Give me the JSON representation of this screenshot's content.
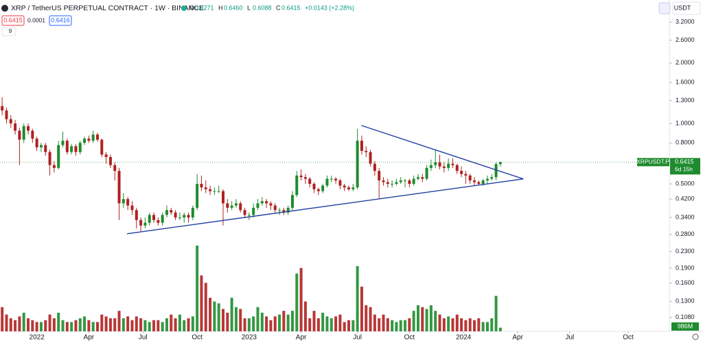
{
  "ui": {
    "symbol": "XRP / TetherUS PERPETUAL CONTRACT · 1W · BINANCE",
    "ohlc": [
      {
        "key": "O",
        "value": "0.6271"
      },
      {
        "key": "H",
        "value": "0.6460"
      },
      {
        "key": "L",
        "value": "0.6088"
      },
      {
        "key": "C",
        "value": "0.6415"
      }
    ],
    "change": "+0.0143 (+2.28%)",
    "sell": "0.6415",
    "spread": "0.0001",
    "buy": "0.6416",
    "indicators": "9",
    "currency": "USDT",
    "price_label": {
      "symbol": "XRPUSDT.P",
      "countdown": "6d 15h"
    }
  },
  "chart_data": {
    "type": "candlestick",
    "log_scale": true,
    "grid": false,
    "up_color": "#1e8c2e",
    "down_color": "#b02020",
    "trendline_color": "#1f3fa0",
    "xlim": [
      -0.5,
      154
    ],
    "xticks": [
      {
        "value": 8,
        "label": "2022"
      },
      {
        "value": 20,
        "label": "Apr"
      },
      {
        "value": 32.5,
        "label": "Jul"
      },
      {
        "value": 45,
        "label": "Oct"
      },
      {
        "value": 57,
        "label": "2023"
      },
      {
        "value": 69,
        "label": "Apr"
      },
      {
        "value": 82,
        "label": "Jul"
      },
      {
        "value": 94,
        "label": "Oct"
      },
      {
        "value": 106.5,
        "label": "2024"
      },
      {
        "value": 119,
        "label": "Apr"
      },
      {
        "value": 131,
        "label": "Jul"
      },
      {
        "value": 144.5,
        "label": "Oct"
      }
    ],
    "ylim": [
      0.0921,
      4.12
    ],
    "yticks": [
      {
        "value": 3.2,
        "label": "3.2000"
      },
      {
        "value": 2.6,
        "label": "2.6000"
      },
      {
        "value": 2,
        "label": "2.0000"
      },
      {
        "value": 1.6,
        "label": "1.6000"
      },
      {
        "value": 1.3,
        "label": "1.3000"
      },
      {
        "value": 1,
        "label": "1.0000"
      },
      {
        "value": 0.8,
        "label": "0.8000"
      },
      {
        "value": 0.5,
        "label": "0.5000"
      },
      {
        "value": 0.42,
        "label": "0.4200"
      },
      {
        "value": 0.34,
        "label": "0.3400"
      },
      {
        "value": 0.28,
        "label": "0.2800"
      },
      {
        "value": 0.23,
        "label": "0.2300"
      },
      {
        "value": 0.19,
        "label": "0.1900"
      },
      {
        "value": 0.16,
        "label": "0.1600"
      },
      {
        "value": 0.13,
        "label": "0.1300"
      },
      {
        "value": 0.108,
        "label": "0.1080"
      }
    ],
    "open": [
      1.22,
      1.16,
      1.05,
      1.0,
      0.92,
      0.83,
      0.97,
      0.92,
      0.84,
      0.76,
      0.78,
      0.72,
      0.62,
      0.6,
      0.78,
      0.82,
      0.72,
      0.77,
      0.72,
      0.8,
      0.84,
      0.82,
      0.88,
      0.83,
      0.7,
      0.68,
      0.62,
      0.58,
      0.4,
      0.42,
      0.39,
      0.37,
      0.33,
      0.31,
      0.32,
      0.35,
      0.33,
      0.32,
      0.35,
      0.37,
      0.36,
      0.34,
      0.34,
      0.35,
      0.34,
      0.38,
      0.5,
      0.48,
      0.47,
      0.46,
      0.46,
      0.46,
      0.4,
      0.38,
      0.39,
      0.4,
      0.37,
      0.35,
      0.35,
      0.38,
      0.4,
      0.41,
      0.4,
      0.39,
      0.37,
      0.37,
      0.36,
      0.38,
      0.44,
      0.55,
      0.54,
      0.53,
      0.5,
      0.47,
      0.46,
      0.49,
      0.53,
      0.53,
      0.52,
      0.49,
      0.48,
      0.47,
      0.48,
      0.82,
      0.73,
      0.72,
      0.63,
      0.58,
      0.52,
      0.51,
      0.5,
      0.5,
      0.51,
      0.52,
      0.52,
      0.5,
      0.53,
      0.54,
      0.53,
      0.6,
      0.62,
      0.64,
      0.61,
      0.6,
      0.63,
      0.62,
      0.58,
      0.56,
      0.55,
      0.52,
      0.51,
      0.5,
      0.52,
      0.53,
      0.54,
      0.6271
    ],
    "high": [
      1.35,
      1.2,
      1.1,
      1.04,
      0.95,
      1.0,
      1.0,
      0.94,
      0.86,
      0.8,
      0.8,
      0.74,
      0.65,
      0.82,
      0.91,
      0.84,
      0.79,
      0.79,
      0.82,
      0.86,
      0.87,
      0.92,
      0.9,
      0.84,
      0.72,
      0.7,
      0.64,
      0.6,
      0.45,
      0.43,
      0.41,
      0.38,
      0.34,
      0.34,
      0.36,
      0.36,
      0.34,
      0.36,
      0.39,
      0.38,
      0.37,
      0.36,
      0.36,
      0.36,
      0.39,
      0.56,
      0.55,
      0.52,
      0.49,
      0.48,
      0.49,
      0.47,
      0.42,
      0.41,
      0.42,
      0.41,
      0.38,
      0.36,
      0.4,
      0.42,
      0.43,
      0.42,
      0.41,
      0.4,
      0.38,
      0.38,
      0.39,
      0.46,
      0.58,
      0.59,
      0.56,
      0.54,
      0.51,
      0.48,
      0.5,
      0.55,
      0.55,
      0.54,
      0.53,
      0.5,
      0.49,
      0.5,
      0.94,
      0.87,
      0.77,
      0.74,
      0.65,
      0.6,
      0.54,
      0.53,
      0.52,
      0.53,
      0.54,
      0.53,
      0.53,
      0.55,
      0.56,
      0.56,
      0.62,
      0.66,
      0.74,
      0.7,
      0.64,
      0.67,
      0.67,
      0.63,
      0.61,
      0.58,
      0.56,
      0.54,
      0.52,
      0.53,
      0.55,
      0.56,
      0.64,
      0.646
    ],
    "low": [
      1.1,
      1.0,
      0.95,
      0.88,
      0.62,
      0.8,
      0.88,
      0.8,
      0.73,
      0.72,
      0.69,
      0.55,
      0.57,
      0.59,
      0.76,
      0.7,
      0.7,
      0.69,
      0.7,
      0.78,
      0.8,
      0.8,
      0.81,
      0.68,
      0.63,
      0.6,
      0.52,
      0.33,
      0.38,
      0.37,
      0.35,
      0.3,
      0.29,
      0.3,
      0.31,
      0.32,
      0.31,
      0.31,
      0.34,
      0.35,
      0.33,
      0.33,
      0.32,
      0.32,
      0.33,
      0.37,
      0.46,
      0.45,
      0.44,
      0.44,
      0.45,
      0.31,
      0.36,
      0.37,
      0.38,
      0.36,
      0.34,
      0.33,
      0.34,
      0.37,
      0.39,
      0.38,
      0.37,
      0.36,
      0.35,
      0.35,
      0.35,
      0.37,
      0.43,
      0.52,
      0.5,
      0.48,
      0.45,
      0.44,
      0.45,
      0.48,
      0.51,
      0.5,
      0.47,
      0.46,
      0.46,
      0.46,
      0.47,
      0.7,
      0.68,
      0.61,
      0.55,
      0.42,
      0.49,
      0.48,
      0.48,
      0.49,
      0.5,
      0.48,
      0.48,
      0.49,
      0.52,
      0.51,
      0.52,
      0.58,
      0.6,
      0.59,
      0.57,
      0.58,
      0.6,
      0.56,
      0.54,
      0.5,
      0.5,
      0.49,
      0.49,
      0.49,
      0.5,
      0.52,
      0.52,
      0.6088
    ],
    "close": [
      1.16,
      1.05,
      1.0,
      0.92,
      0.83,
      0.97,
      0.92,
      0.84,
      0.76,
      0.78,
      0.72,
      0.62,
      0.6,
      0.78,
      0.82,
      0.72,
      0.77,
      0.72,
      0.8,
      0.84,
      0.82,
      0.88,
      0.83,
      0.7,
      0.68,
      0.62,
      0.58,
      0.4,
      0.42,
      0.39,
      0.37,
      0.33,
      0.31,
      0.32,
      0.35,
      0.33,
      0.32,
      0.35,
      0.37,
      0.36,
      0.34,
      0.34,
      0.35,
      0.34,
      0.38,
      0.5,
      0.48,
      0.47,
      0.46,
      0.46,
      0.46,
      0.4,
      0.38,
      0.39,
      0.4,
      0.37,
      0.35,
      0.35,
      0.38,
      0.4,
      0.41,
      0.4,
      0.39,
      0.37,
      0.37,
      0.36,
      0.38,
      0.44,
      0.55,
      0.54,
      0.53,
      0.5,
      0.47,
      0.46,
      0.49,
      0.53,
      0.53,
      0.52,
      0.49,
      0.48,
      0.47,
      0.48,
      0.82,
      0.73,
      0.72,
      0.63,
      0.58,
      0.52,
      0.51,
      0.5,
      0.5,
      0.51,
      0.52,
      0.52,
      0.5,
      0.53,
      0.54,
      0.53,
      0.6,
      0.62,
      0.64,
      0.61,
      0.6,
      0.63,
      0.62,
      0.58,
      0.56,
      0.55,
      0.52,
      0.51,
      0.5,
      0.52,
      0.53,
      0.54,
      0.6272,
      0.6415
    ],
    "volume": [
      6500,
      4500,
      3500,
      3000,
      4000,
      5000,
      3500,
      3000,
      2500,
      2500,
      3000,
      4500,
      3500,
      5000,
      3000,
      2500,
      2500,
      3000,
      3500,
      4000,
      3000,
      2500,
      2500,
      4500,
      4000,
      3500,
      3500,
      5500,
      3500,
      4000,
      3000,
      4000,
      3500,
      3000,
      2500,
      3000,
      3000,
      2500,
      3500,
      4500,
      3500,
      4500,
      3000,
      3500,
      4000,
      23000,
      15000,
      13000,
      9000,
      8000,
      7500,
      6000,
      5000,
      9000,
      6500,
      6000,
      3500,
      3500,
      4000,
      6500,
      5000,
      4000,
      3000,
      4000,
      4500,
      5500,
      4500,
      5500,
      15500,
      17000,
      8000,
      3500,
      5500,
      3500,
      5000,
      4000,
      3500,
      4000,
      4500,
      2500,
      3000,
      3000,
      17500,
      12000,
      7000,
      6500,
      4500,
      3500,
      4500,
      3500,
      3000,
      2500,
      3000,
      3000,
      3500,
      5500,
      7000,
      6500,
      6000,
      7000,
      5500,
      4500,
      3500,
      4000,
      3500,
      4500,
      3500,
      3000,
      3500,
      3000,
      3500,
      2500,
      2500,
      3500,
      9500,
      986
    ],
    "volume_label": "986M",
    "trendlines": [
      {
        "x": [
          28.8,
          120.3
        ],
        "y": [
          0.282,
          0.529
        ]
      },
      {
        "x": [
          82.9,
          120.3
        ],
        "y": [
          0.977,
          0.529
        ]
      }
    ]
  }
}
